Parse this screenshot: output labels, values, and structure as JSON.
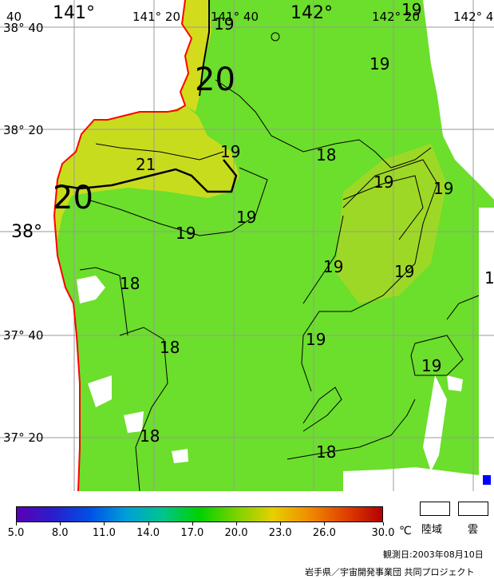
{
  "map": {
    "colors": {
      "sea_base": "#6cde2c",
      "sea_warm": "#a8dc22",
      "sea_hot": "#d6dc1c",
      "land": "#ffffff",
      "cloud": "#ffffff",
      "coastline": "#ff0000",
      "grid": "#9a9a9a",
      "isotherm": "#000000",
      "missing_mark": "#0000ff"
    },
    "longitude_labels": [
      {
        "text": "40",
        "size": "sm"
      },
      {
        "text": "141°",
        "size": "big"
      },
      {
        "text": "141° 20",
        "size": "sm"
      },
      {
        "text": "141° 40",
        "size": "sm"
      },
      {
        "text": "142°",
        "size": "big"
      },
      {
        "text": "142° 20",
        "size": "sm"
      },
      {
        "text": "142° 4",
        "size": "sm"
      }
    ],
    "latitude_labels": [
      {
        "text": "38° 40",
        "size": "sm"
      },
      {
        "text": "38° 20",
        "size": "sm"
      },
      {
        "text": "38°",
        "size": "big"
      },
      {
        "text": "37° 40",
        "size": "sm"
      },
      {
        "text": "37° 20",
        "size": "sm"
      }
    ],
    "isotherm_labels": [
      {
        "text": "19",
        "size": 20
      },
      {
        "text": "19",
        "size": 20
      },
      {
        "text": "20",
        "size": 40
      },
      {
        "text": "19",
        "size": 20
      },
      {
        "text": "18",
        "size": 20
      },
      {
        "text": "21",
        "size": 20
      },
      {
        "text": "20",
        "size": 40
      },
      {
        "text": "19",
        "size": 20
      },
      {
        "text": "19",
        "size": 20
      },
      {
        "text": "19",
        "size": 20
      },
      {
        "text": "19",
        "size": 20
      },
      {
        "text": "19",
        "size": 20
      },
      {
        "text": "19",
        "size": 20
      },
      {
        "text": "18",
        "size": 20
      },
      {
        "text": "1",
        "size": 20
      },
      {
        "text": "19",
        "size": 20
      },
      {
        "text": "18",
        "size": 20
      },
      {
        "text": "19",
        "size": 20
      },
      {
        "text": "18",
        "size": 20
      },
      {
        "text": "18",
        "size": 20
      }
    ]
  },
  "colorbar": {
    "ticks": [
      "5.0",
      "8.0",
      "11.0",
      "14.0",
      "17.0",
      "20.0",
      "23.0",
      "26.0",
      "30.0"
    ],
    "unit": "℃"
  },
  "legend": {
    "land_label": "陸域",
    "cloud_label": "雲"
  },
  "footer": {
    "observation_date": "観測日:2003年08月10日",
    "credit": "岩手県／宇宙開発事業団 共同プロジェクト"
  }
}
